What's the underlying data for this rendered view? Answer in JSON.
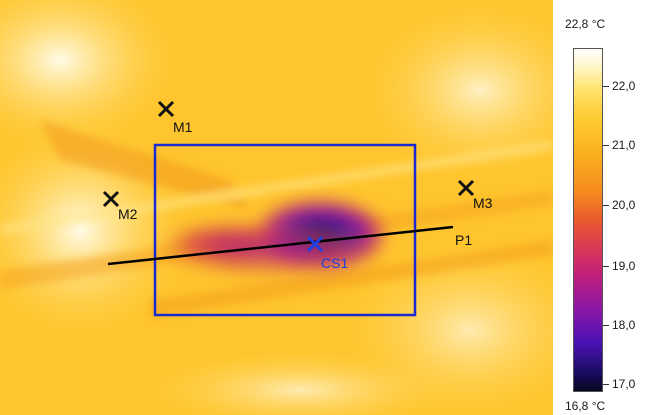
{
  "scale": {
    "max_label": "22,8 °C",
    "min_label": "16,8 °C",
    "ticks": [
      "22,0",
      "21,0",
      "20,0",
      "19,0",
      "18,0",
      "17,0"
    ]
  },
  "markers": {
    "m1": "M1",
    "m2": "M2",
    "m3": "M3",
    "cs1": "CS1",
    "p1": "P1"
  },
  "colors": {
    "marker": "#111111",
    "cold_spot": "#1f3fe0",
    "box": "#1a2ad0",
    "profile_line": "#000000"
  }
}
